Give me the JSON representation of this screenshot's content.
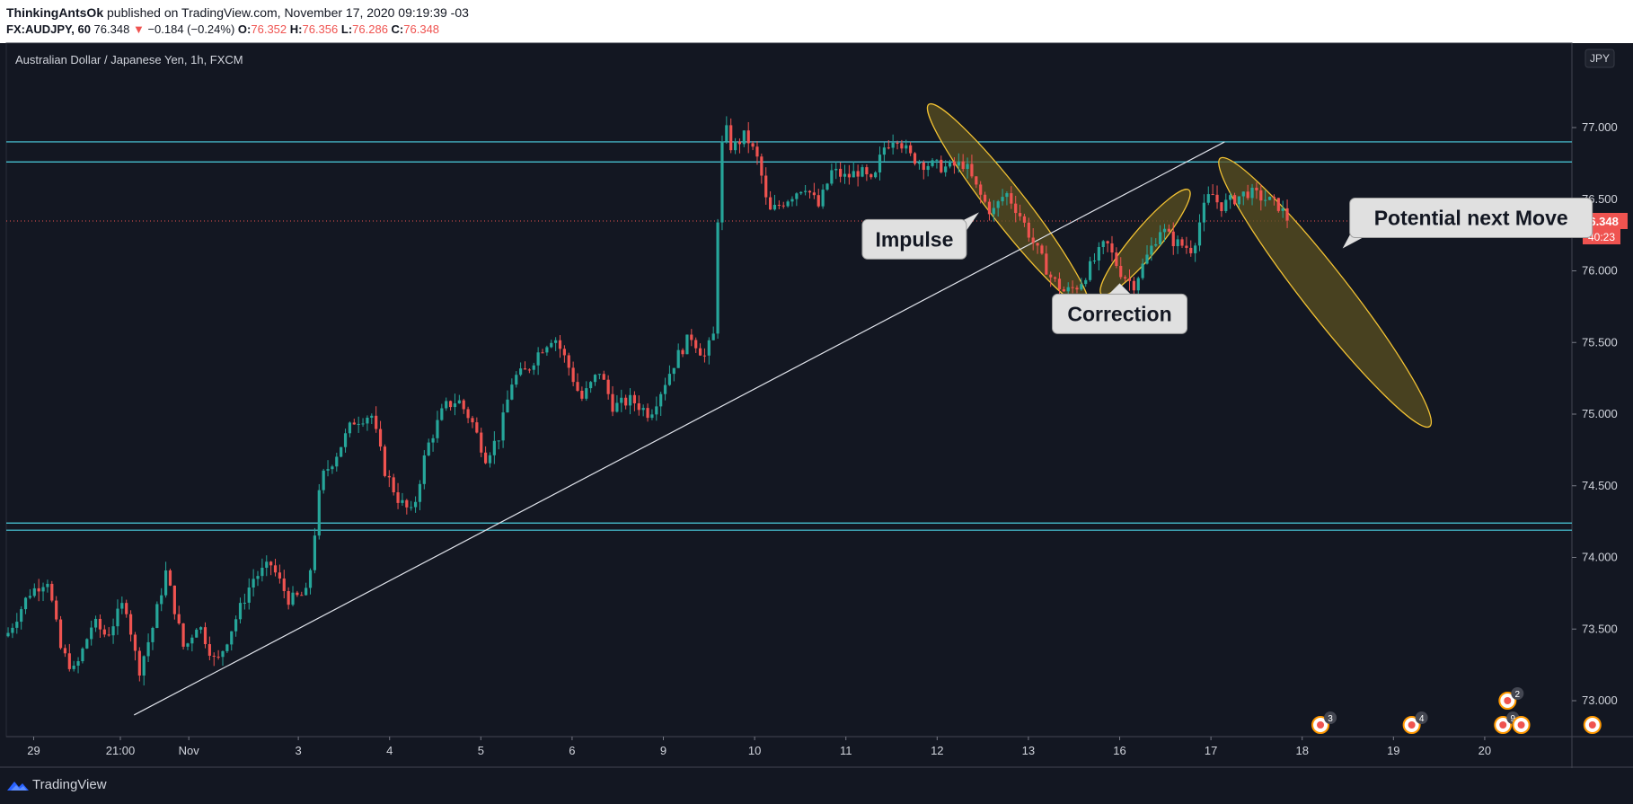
{
  "header": {
    "author": "ThinkingAntsOk",
    "published": "published on TradingView.com, November 17, 2020 09:19:39 -03",
    "symbol": "FX:AUDJPY, 60",
    "last": "76.348",
    "change": "−0.184 (−0.24%)",
    "open_label": "O:",
    "open": "76.352",
    "high_label": "H:",
    "high": "76.356",
    "low_label": "L:",
    "low": "76.286",
    "close_label": "C:",
    "close": "76.348"
  },
  "footer": {
    "brand": "TradingView"
  },
  "colors": {
    "background": "#131722",
    "up": "#26a69a",
    "down": "#ef5350",
    "levels": "#4dd0e1",
    "trendline": "#e0e3eb",
    "ellipse_stroke": "#f2c233",
    "ellipse_fill": "#5b5020"
  },
  "chart_data": {
    "type": "candlestick",
    "title": "Australian Dollar / Japanese Yen, 1h, FXCM",
    "currency_badge": "JPY",
    "last_price_label": "76.348",
    "countdown_label": "40:23",
    "ylim": [
      72.75,
      77.55
    ],
    "y_ticks": [
      "77.000",
      "76.500",
      "76.000",
      "75.500",
      "75.000",
      "74.500",
      "74.000",
      "73.500",
      "73.000"
    ],
    "y_tick_values": [
      77.0,
      76.5,
      76.0,
      75.5,
      75.0,
      74.5,
      74.0,
      73.5,
      73.0
    ],
    "x_range": [
      0,
      17.15
    ],
    "x_ticks": [
      {
        "label": "29",
        "t": 0.3
      },
      {
        "label": "21:00",
        "t": 1.25
      },
      {
        "label": "Nov",
        "t": 2.0
      },
      {
        "label": "3",
        "t": 3.2
      },
      {
        "label": "4",
        "t": 4.2
      },
      {
        "label": "5",
        "t": 5.2
      },
      {
        "label": "6",
        "t": 6.2
      },
      {
        "label": "9",
        "t": 7.2
      },
      {
        "label": "10",
        "t": 8.2
      },
      {
        "label": "11",
        "t": 9.2
      },
      {
        "label": "12",
        "t": 10.2
      },
      {
        "label": "13",
        "t": 11.2
      },
      {
        "label": "16",
        "t": 12.2
      },
      {
        "label": "17",
        "t": 13.2
      },
      {
        "label": "18",
        "t": 14.2
      },
      {
        "label": "19",
        "t": 15.2
      },
      {
        "label": "20",
        "t": 16.2
      }
    ],
    "price_path": [
      [
        0.0,
        73.45
      ],
      [
        0.25,
        73.75
      ],
      [
        0.45,
        73.85
      ],
      [
        0.6,
        73.35
      ],
      [
        0.75,
        73.2
      ],
      [
        0.95,
        73.55
      ],
      [
        1.1,
        73.45
      ],
      [
        1.3,
        73.7
      ],
      [
        1.45,
        73.2
      ],
      [
        1.6,
        73.5
      ],
      [
        1.75,
        73.9
      ],
      [
        1.95,
        73.35
      ],
      [
        2.1,
        73.55
      ],
      [
        2.3,
        73.25
      ],
      [
        2.5,
        73.55
      ],
      [
        2.7,
        73.85
      ],
      [
        2.9,
        73.95
      ],
      [
        3.1,
        73.7
      ],
      [
        3.3,
        73.75
      ],
      [
        3.45,
        74.55
      ],
      [
        3.6,
        74.7
      ],
      [
        3.8,
        74.95
      ],
      [
        4.0,
        75.0
      ],
      [
        4.15,
        74.6
      ],
      [
        4.3,
        74.4
      ],
      [
        4.45,
        74.3
      ],
      [
        4.6,
        74.75
      ],
      [
        4.8,
        75.05
      ],
      [
        4.95,
        75.1
      ],
      [
        5.1,
        74.95
      ],
      [
        5.25,
        74.7
      ],
      [
        5.4,
        74.85
      ],
      [
        5.55,
        75.25
      ],
      [
        5.7,
        75.3
      ],
      [
        5.85,
        75.45
      ],
      [
        6.0,
        75.55
      ],
      [
        6.15,
        75.35
      ],
      [
        6.3,
        75.1
      ],
      [
        6.5,
        75.3
      ],
      [
        6.65,
        75.05
      ],
      [
        6.85,
        75.1
      ],
      [
        7.05,
        75.0
      ],
      [
        7.2,
        75.2
      ],
      [
        7.35,
        75.4
      ],
      [
        7.5,
        75.55
      ],
      [
        7.65,
        75.4
      ],
      [
        7.75,
        75.55
      ],
      [
        7.82,
        76.8
      ],
      [
        7.88,
        77.0
      ],
      [
        7.95,
        76.85
      ],
      [
        8.1,
        76.95
      ],
      [
        8.25,
        76.75
      ],
      [
        8.35,
        76.4
      ],
      [
        8.55,
        76.5
      ],
      [
        8.75,
        76.6
      ],
      [
        8.9,
        76.45
      ],
      [
        9.05,
        76.7
      ],
      [
        9.2,
        76.65
      ],
      [
        9.35,
        76.7
      ],
      [
        9.5,
        76.6
      ],
      [
        9.6,
        76.85
      ],
      [
        9.75,
        76.95
      ],
      [
        9.9,
        76.8
      ],
      [
        10.05,
        76.75
      ],
      [
        10.3,
        76.72
      ],
      [
        10.5,
        76.75
      ],
      [
        10.65,
        76.55
      ],
      [
        10.8,
        76.4
      ],
      [
        10.95,
        76.55
      ],
      [
        11.1,
        76.4
      ],
      [
        11.25,
        76.2
      ],
      [
        11.45,
        75.95
      ],
      [
        11.6,
        75.85
      ],
      [
        11.75,
        75.9
      ],
      [
        11.9,
        76.05
      ],
      [
        12.05,
        76.2
      ],
      [
        12.2,
        76.0
      ],
      [
        12.35,
        75.9
      ],
      [
        12.5,
        76.1
      ],
      [
        12.65,
        76.3
      ],
      [
        12.8,
        76.2
      ],
      [
        13.0,
        76.15
      ],
      [
        13.1,
        76.4
      ],
      [
        13.2,
        76.55
      ],
      [
        13.3,
        76.45
      ],
      [
        13.45,
        76.5
      ],
      [
        13.6,
        76.55
      ],
      [
        13.8,
        76.5
      ],
      [
        13.95,
        76.45
      ],
      [
        14.05,
        76.35
      ]
    ],
    "horizontal_levels": [
      76.9,
      76.76,
      74.24,
      74.19
    ],
    "last_price": 76.348,
    "trendline": [
      [
        1.4,
        72.9
      ],
      [
        13.35,
        76.9
      ]
    ],
    "ellipses": [
      {
        "cx": 10.98,
        "cy": 76.45,
        "rx_bars": 0.2,
        "ry_price": 0.95,
        "angle": -38
      },
      {
        "cx": 12.48,
        "cy": 76.2,
        "rx_bars": 0.15,
        "ry_price": 0.5,
        "angle": 40
      },
      {
        "cx": 14.45,
        "cy": 75.85,
        "rx_bars": 0.25,
        "ry_price": 1.25,
        "angle": -38
      }
    ],
    "annotations": [
      {
        "text": "Impulse",
        "t": 9.95,
        "y": 76.22
      },
      {
        "text": "Correction",
        "t": 12.2,
        "y": 75.7
      },
      {
        "text": "Potential next Move",
        "t": 16.05,
        "y": 76.37
      }
    ],
    "event_markers": [
      {
        "t": 14.4,
        "badge": "3"
      },
      {
        "t": 15.4,
        "badge": "4"
      },
      {
        "t": 16.4,
        "badge": "9"
      },
      {
        "t": 16.6,
        "badge": ""
      },
      {
        "t": 17.38,
        "badge": ""
      },
      {
        "t": 16.45,
        "badge": "2",
        "row": 2
      }
    ]
  }
}
